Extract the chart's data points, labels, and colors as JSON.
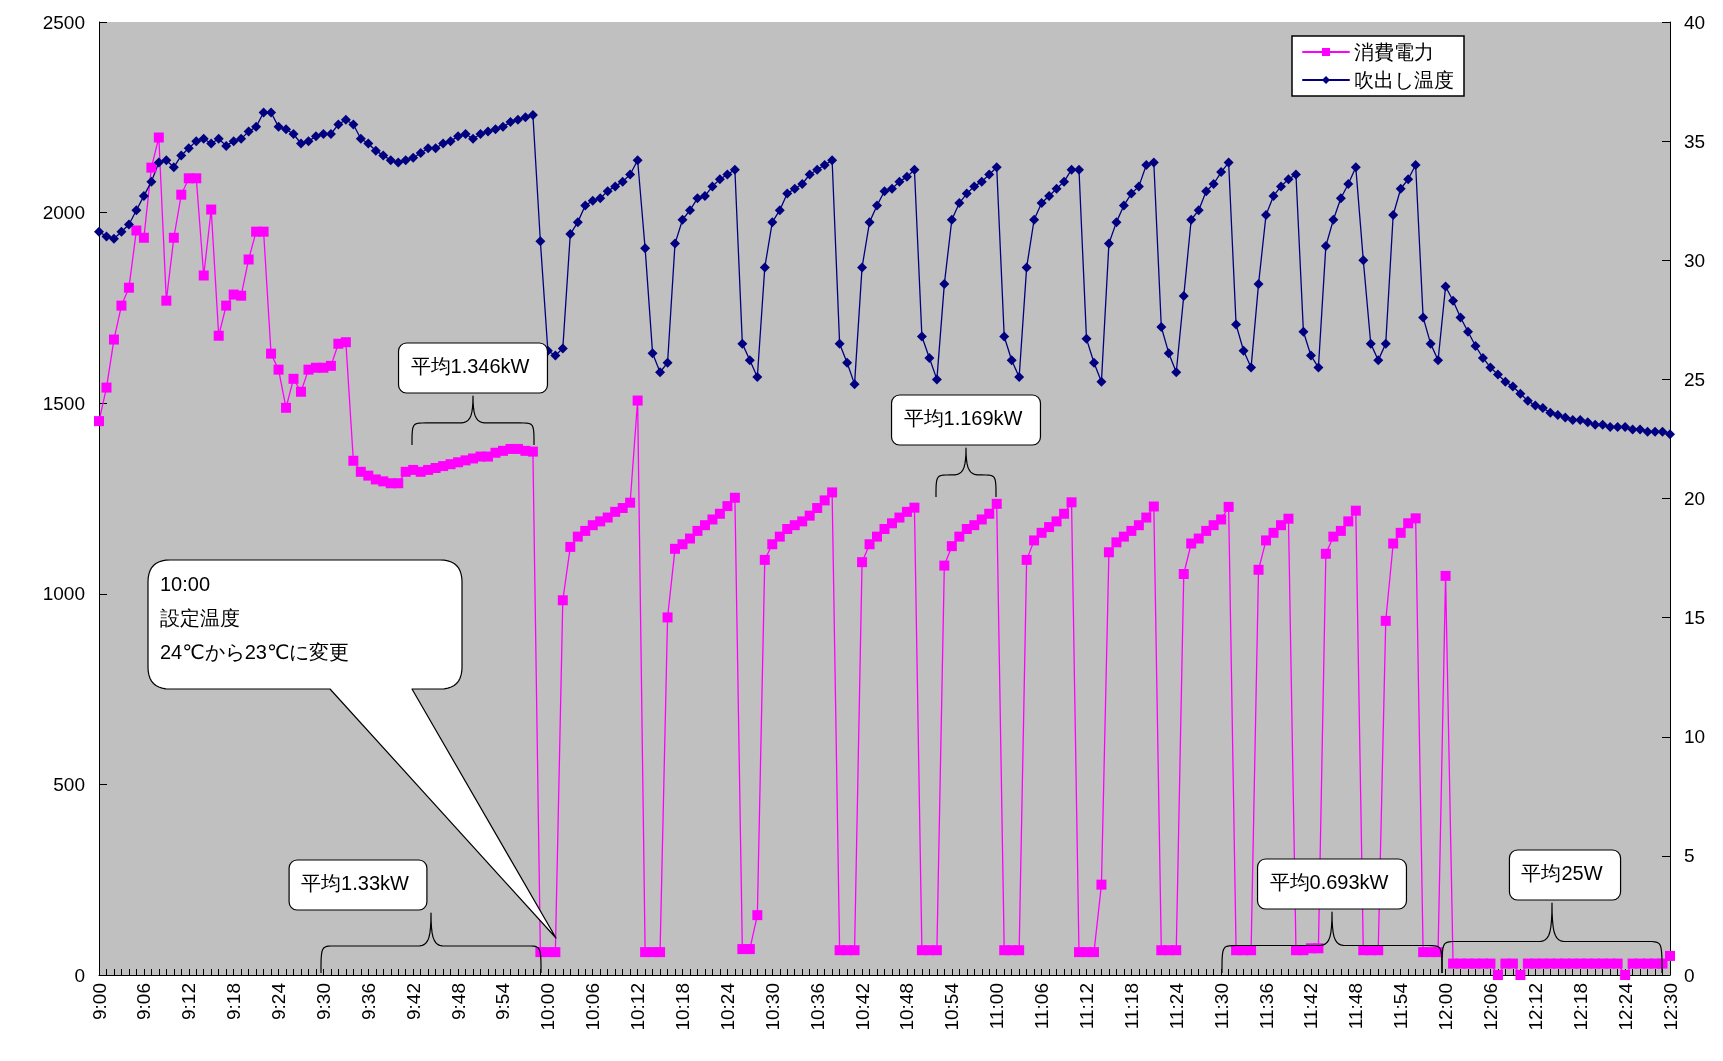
{
  "chart_data": {
    "type": "line",
    "x": [
      9,
      9.0167,
      9.0333,
      9.05,
      9.0667,
      9.0833,
      9.1,
      9.1167,
      9.1333,
      9.15,
      9.1667,
      9.1833,
      9.2,
      9.2167,
      9.2333,
      9.25,
      9.2667,
      9.2833,
      9.3,
      9.3167,
      9.3333,
      9.35,
      9.3667,
      9.3833,
      9.4,
      9.4167,
      9.4333,
      9.45,
      9.4667,
      9.4833,
      9.5,
      9.5167,
      9.5333,
      9.55,
      9.5667,
      9.5833,
      9.6,
      9.6167,
      9.6333,
      9.65,
      9.6667,
      9.6833,
      9.7,
      9.7167,
      9.7333,
      9.75,
      9.7667,
      9.7833,
      9.8,
      9.8167,
      9.8333,
      9.85,
      9.8667,
      9.8833,
      9.9,
      9.9167,
      9.9333,
      9.95,
      9.9667,
      9.9833,
      10,
      10.0167,
      10.0333,
      10.05,
      10.0667,
      10.0833,
      10.1,
      10.1167,
      10.1333,
      10.15,
      10.1667,
      10.1833,
      10.2,
      10.2167,
      10.2333,
      10.25,
      10.2667,
      10.2833,
      10.3,
      10.3167,
      10.3333,
      10.35,
      10.3667,
      10.3833,
      10.4,
      10.4167,
      10.4333,
      10.45,
      10.4667,
      10.4833,
      10.5,
      10.5167,
      10.5333,
      10.55,
      10.5667,
      10.5833,
      10.6,
      10.6167,
      10.6333,
      10.65,
      10.6667,
      10.6833,
      10.7,
      10.7167,
      10.7333,
      10.75,
      10.7667,
      10.7833,
      10.8,
      10.8167,
      10.8333,
      10.85,
      10.8667,
      10.8833,
      10.9,
      10.9167,
      10.9333,
      10.95,
      10.9667,
      10.9833,
      11,
      11.0167,
      11.0333,
      11.05,
      11.0667,
      11.0833,
      11.1,
      11.1167,
      11.1333,
      11.15,
      11.1667,
      11.1833,
      11.2,
      11.2167,
      11.2333,
      11.25,
      11.2667,
      11.2833,
      11.3,
      11.3167,
      11.3333,
      11.35,
      11.3667,
      11.3833,
      11.4,
      11.4167,
      11.4333,
      11.45,
      11.4667,
      11.4833,
      11.5,
      11.5167,
      11.5333,
      11.55,
      11.5667,
      11.5833,
      11.6,
      11.6167,
      11.6333,
      11.65,
      11.6667,
      11.6833,
      11.7,
      11.7167,
      11.7333,
      11.75,
      11.7667,
      11.7833,
      11.8,
      11.8167,
      11.8333,
      11.85,
      11.8667,
      11.8833,
      11.9,
      11.9167,
      11.9333,
      11.95,
      11.9667,
      11.9833,
      12,
      12.0167,
      12.0333,
      12.05,
      12.0667,
      12.0833,
      12.1,
      12.1167,
      12.1333,
      12.15,
      12.1667,
      12.1833,
      12.2,
      12.2167,
      12.2333,
      12.25,
      12.2667,
      12.2833,
      12.3,
      12.3167,
      12.3333,
      12.35,
      12.3667,
      12.3833,
      12.4,
      12.4167,
      12.4333,
      12.45,
      12.4667,
      12.4833,
      12.5
    ],
    "series": [
      {
        "name": "消費電力",
        "color": "#ff00ff",
        "marker": "square",
        "values": [
          1453,
          1541,
          1667,
          1756,
          1803,
          1953,
          1934,
          2118,
          2197,
          1769,
          1934,
          2047,
          2090,
          2090,
          1835,
          2008,
          1677,
          1756,
          1785,
          1782,
          1877,
          1950,
          1950,
          1630,
          1588,
          1488,
          1564,
          1530,
          1588,
          1593,
          1593,
          1598,
          1656,
          1660,
          1349,
          1320,
          1310,
          1300,
          1295,
          1290,
          1290,
          1320,
          1325,
          1320,
          1325,
          1330,
          1335,
          1340,
          1345,
          1350,
          1355,
          1360,
          1360,
          1370,
          1375,
          1380,
          1380,
          1375,
          1373,
          60,
          60,
          60,
          983,
          1123,
          1150,
          1165,
          1180,
          1190,
          1200,
          1215,
          1225,
          1239,
          1507,
          60,
          60,
          60,
          938,
          1118,
          1130,
          1145,
          1165,
          1180,
          1195,
          1210,
          1230,
          1252,
          68,
          68,
          157,
          1089,
          1130,
          1150,
          1170,
          1180,
          1190,
          1205,
          1225,
          1245,
          1266,
          65,
          65,
          65,
          1083,
          1130,
          1150,
          1170,
          1185,
          1200,
          1215,
          1226,
          65,
          65,
          65,
          1074,
          1125,
          1150,
          1170,
          1180,
          1195,
          1210,
          1236,
          65,
          65,
          65,
          1089,
          1140,
          1160,
          1175,
          1190,
          1210,
          1240,
          60,
          60,
          60,
          237,
          1109,
          1135,
          1150,
          1165,
          1180,
          1200,
          1229,
          65,
          65,
          65,
          1052,
          1132,
          1145,
          1165,
          1180,
          1195,
          1228,
          65,
          65,
          65,
          1063,
          1140,
          1160,
          1180,
          1197,
          65,
          65,
          70,
          70,
          1105,
          1150,
          1165,
          1190,
          1218,
          65,
          65,
          65,
          929,
          1132,
          1160,
          1185,
          1198,
          60,
          60,
          60,
          1047,
          30,
          30,
          30,
          30,
          30,
          30,
          0,
          30,
          30,
          0,
          30,
          30,
          30,
          30,
          30,
          30,
          30,
          30,
          30,
          30,
          30,
          30,
          30,
          0,
          30,
          30,
          30,
          30,
          30,
          50
        ]
      },
      {
        "name": "吹出し温度",
        "color": "#000080",
        "marker": "diamond",
        "axis": "y2",
        "values": [
          31.2,
          31.0,
          30.9,
          31.2,
          31.5,
          32.1,
          32.7,
          33.3,
          34.1,
          34.2,
          33.9,
          34.4,
          34.7,
          35.0,
          35.1,
          34.9,
          35.1,
          34.8,
          35.0,
          35.1,
          35.4,
          35.6,
          36.2,
          36.2,
          35.6,
          35.5,
          35.3,
          34.9,
          35.0,
          35.2,
          35.3,
          35.3,
          35.7,
          35.9,
          35.7,
          35.1,
          34.9,
          34.6,
          34.4,
          34.2,
          34.1,
          34.2,
          34.3,
          34.5,
          34.7,
          34.7,
          34.9,
          35.0,
          35.2,
          35.3,
          35.1,
          35.3,
          35.4,
          35.5,
          35.6,
          35.8,
          35.9,
          36.0,
          36.1,
          30.8,
          26.2,
          26.0,
          26.3,
          31.1,
          31.6,
          32.3,
          32.5,
          32.6,
          32.9,
          33.1,
          33.3,
          33.6,
          34.2,
          30.5,
          26.1,
          25.3,
          25.7,
          30.7,
          31.7,
          32.1,
          32.6,
          32.7,
          33.1,
          33.4,
          33.6,
          33.8,
          26.5,
          25.8,
          25.1,
          29.7,
          31.6,
          32.1,
          32.8,
          33.0,
          33.2,
          33.6,
          33.8,
          34.0,
          34.2,
          26.5,
          25.7,
          24.8,
          29.7,
          31.6,
          32.3,
          32.9,
          33.0,
          33.3,
          33.5,
          33.8,
          26.8,
          25.9,
          25.0,
          29.0,
          31.7,
          32.4,
          32.8,
          33.1,
          33.3,
          33.6,
          33.9,
          26.8,
          25.8,
          25.1,
          29.7,
          31.7,
          32.4,
          32.7,
          33.0,
          33.3,
          33.8,
          33.8,
          26.7,
          25.7,
          24.9,
          30.7,
          31.6,
          32.3,
          32.8,
          33.1,
          34.0,
          34.1,
          27.2,
          26.1,
          25.3,
          28.5,
          31.7,
          32.1,
          32.9,
          33.2,
          33.7,
          34.1,
          27.3,
          26.2,
          25.5,
          29.0,
          31.9,
          32.7,
          33.1,
          33.4,
          33.6,
          27.0,
          26.0,
          25.5,
          30.6,
          31.7,
          32.6,
          33.2,
          33.9,
          30.0,
          26.5,
          25.8,
          26.5,
          31.9,
          33.0,
          33.4,
          34.0,
          27.6,
          26.5,
          25.8,
          28.9,
          28.3,
          27.6,
          27.0,
          26.4,
          25.9,
          25.5,
          25.2,
          24.9,
          24.7,
          24.4,
          24.1,
          23.9,
          23.8,
          23.6,
          23.5,
          23.4,
          23.3,
          23.3,
          23.2,
          23.1,
          23.1,
          23.0,
          23.0,
          23.0,
          22.9,
          22.9,
          22.8,
          22.8,
          22.8,
          22.7
        ]
      }
    ],
    "xlim": [
      9,
      12.5
    ],
    "xticks": [
      {
        "value": 9,
        "label": "9:00"
      },
      {
        "value": 9.1,
        "label": "9:06"
      },
      {
        "value": 9.2,
        "label": "9:12"
      },
      {
        "value": 9.3,
        "label": "9:18"
      },
      {
        "value": 9.4,
        "label": "9:24"
      },
      {
        "value": 9.5,
        "label": "9:30"
      },
      {
        "value": 9.6,
        "label": "9:36"
      },
      {
        "value": 9.7,
        "label": "9:42"
      },
      {
        "value": 9.8,
        "label": "9:48"
      },
      {
        "value": 9.9,
        "label": "9:54"
      },
      {
        "value": 10,
        "label": "10:00"
      },
      {
        "value": 10.1,
        "label": "10:06"
      },
      {
        "value": 10.2,
        "label": "10:12"
      },
      {
        "value": 10.3,
        "label": "10:18"
      },
      {
        "value": 10.4,
        "label": "10:24"
      },
      {
        "value": 10.5,
        "label": "10:30"
      },
      {
        "value": 10.6,
        "label": "10:36"
      },
      {
        "value": 10.7,
        "label": "10:42"
      },
      {
        "value": 10.8,
        "label": "10:48"
      },
      {
        "value": 10.9,
        "label": "10:54"
      },
      {
        "value": 11,
        "label": "11:00"
      },
      {
        "value": 11.1,
        "label": "11:06"
      },
      {
        "value": 11.2,
        "label": "11:12"
      },
      {
        "value": 11.3,
        "label": "11:18"
      },
      {
        "value": 11.4,
        "label": "11:24"
      },
      {
        "value": 11.5,
        "label": "11:30"
      },
      {
        "value": 11.6,
        "label": "11:36"
      },
      {
        "value": 11.7,
        "label": "11:42"
      },
      {
        "value": 11.8,
        "label": "11:48"
      },
      {
        "value": 11.9,
        "label": "11:54"
      },
      {
        "value": 12,
        "label": "12:00"
      },
      {
        "value": 12.1,
        "label": "12:06"
      },
      {
        "value": 12.2,
        "label": "12:12"
      },
      {
        "value": 12.3,
        "label": "12:18"
      },
      {
        "value": 12.4,
        "label": "12:24"
      },
      {
        "value": 12.5,
        "label": "12:30"
      }
    ],
    "ylim": [
      0,
      2500
    ],
    "yticks": [
      0,
      500,
      1000,
      1500,
      2000,
      2500
    ],
    "y2lim": [
      0,
      40
    ],
    "y2ticks": [
      0,
      5,
      10,
      15,
      20,
      25,
      30,
      35,
      40
    ],
    "grid": false,
    "legend": "top right",
    "line_style": "solid",
    "annotations": [
      "平均1.346kW",
      "平均1.169kW",
      "平均1.33kW",
      "平均0.693kW",
      "平均25W",
      "10:00\n設定温度\n24℃から23℃に変更"
    ]
  }
}
